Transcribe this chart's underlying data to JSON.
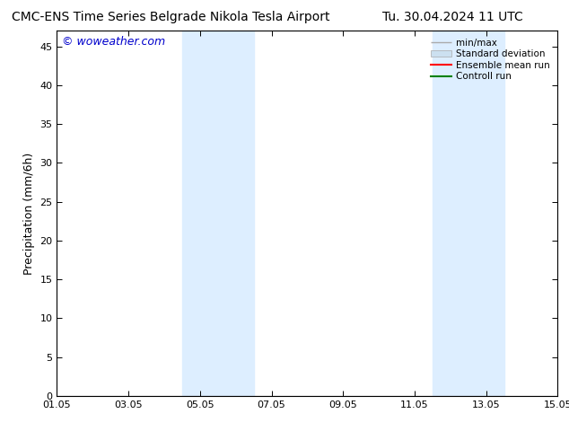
{
  "title_left": "CMC-ENS Time Series Belgrade Nikola Tesla Airport",
  "title_right": "Tu. 30.04.2024 11 UTC",
  "ylabel": "Precipitation (mm/6h)",
  "watermark": "© woweather.com",
  "xtick_labels": [
    "01.05",
    "03.05",
    "05.05",
    "07.05",
    "09.05",
    "11.05",
    "13.05",
    "15.05"
  ],
  "xtick_positions": [
    0,
    2,
    4,
    6,
    8,
    10,
    12,
    14
  ],
  "ylim": [
    0,
    47
  ],
  "ytick_positions": [
    0,
    5,
    10,
    15,
    20,
    25,
    30,
    35,
    40,
    45
  ],
  "shaded_regions": [
    {
      "xmin": 3.5,
      "xmax": 5.5,
      "color": "#ddeeff"
    },
    {
      "xmin": 10.5,
      "xmax": 12.5,
      "color": "#ddeeff"
    }
  ],
  "legend_entries": [
    {
      "label": "min/max",
      "color": "#aaaaaa",
      "lw": 1.0
    },
    {
      "label": "Standard deviation",
      "color": "#cce0f0",
      "lw": 6
    },
    {
      "label": "Ensemble mean run",
      "color": "#ff0000",
      "lw": 1.5
    },
    {
      "label": "Controll run",
      "color": "#008000",
      "lw": 1.5
    }
  ],
  "bg_color": "#ffffff",
  "plot_bg_color": "#ffffff",
  "title_fontsize": 10,
  "axis_fontsize": 9,
  "tick_fontsize": 8,
  "watermark_color": "#0000cc",
  "border_color": "#000000"
}
